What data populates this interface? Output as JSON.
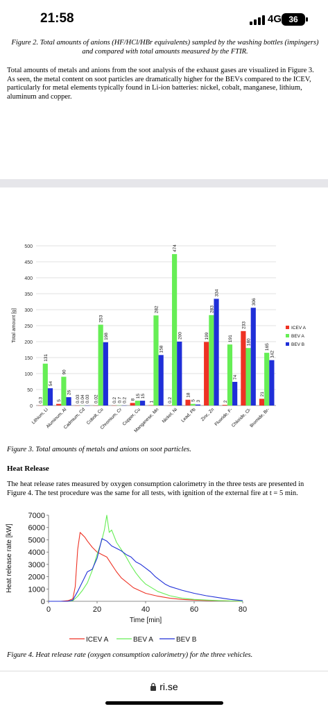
{
  "status_bar": {
    "time": "21:58",
    "network": "4G",
    "battery": "36"
  },
  "doc": {
    "fig2_caption": "Figure 2. Total amounts of anions (HF/HCl/HBr equivalents) sampled by the washing bottles (impingers) and compared with total amounts measured by the FTIR.",
    "intro_paragraph": "Total amounts of metals and anions from the soot analysis of the exhaust gases are visualized in Figure 3. As seen, the metal content on soot particles are dramatically higher for the BEVs compared to the ICEV, particularly for metal elements typically found in Li-ion batteries: nickel, cobalt, manganese, lithium, aluminum and copper.",
    "fig3_caption": "Figure 3. Total amounts of metals and anions on soot particles.",
    "heat_release_heading": "Heat Release",
    "heat_paragraph": "The heat release rates measured by oxygen consumption calorimetry in the three tests are presented in Figure 4. The test procedure was the same for all tests, with ignition of the external fire at t = 5 min.",
    "fig4_caption": "Figure 4. Heat release rate (oxygen consumption calorimetry) for the three vehicles."
  },
  "browser": {
    "url": "ri.se",
    "lock_icon": "lock-icon"
  },
  "chart_data": [
    {
      "type": "bar",
      "ylabel": "Total amount [g]",
      "ylim": [
        0,
        500
      ],
      "yticks": [
        0,
        50,
        100,
        150,
        200,
        250,
        300,
        350,
        400,
        450,
        500
      ],
      "categories": [
        "Lithium, Li",
        "Aluminum, Al",
        "Cadmium, Cd",
        "Cobolt, Co",
        "Chromium, Cr",
        "Copper, Cu",
        "Manganese, Mn",
        "Nickel, Ni",
        "Lead, Pb",
        "Zinc, Zn",
        "Fluoride, F-",
        "Chloride, Cl-",
        "Bromide, Br-"
      ],
      "series": [
        {
          "name": "ICEV A",
          "color": "#ee3224",
          "values": [
            0.3,
            5,
            0.03,
            0.02,
            0.2,
            8,
            1,
            0.2,
            18,
            199,
            2,
            233,
            21
          ],
          "labels": [
            "0.3",
            "5",
            "0.03",
            "0.02",
            "0.2",
            "8",
            "1",
            "0.2",
            "18",
            "199",
            "2",
            "233",
            "21"
          ]
        },
        {
          "name": "BEV A",
          "color": "#66ee55",
          "values": [
            131,
            90,
            0.04,
            253,
            0.7,
            15,
            282,
            474,
            5,
            283,
            191,
            180,
            165
          ],
          "labels": [
            "131",
            "90",
            "0.04",
            "253",
            "0.7",
            "15",
            "282",
            "474",
            "5",
            "283",
            "191",
            "180",
            "165"
          ]
        },
        {
          "name": "BEV B",
          "color": "#1f2fd8",
          "values": [
            54,
            26,
            0.03,
            198,
            0.2,
            15,
            158,
            200,
            3,
            334,
            74,
            306,
            142
          ],
          "labels": [
            "54",
            "26",
            "0.03",
            "198",
            "0.2",
            "15",
            "158",
            "200",
            "3",
            "334",
            "74",
            "306",
            "142"
          ]
        }
      ],
      "legend": "right",
      "grid": true
    },
    {
      "type": "line",
      "xlabel": "Time [min]",
      "ylabel": "Heat release rate [kW]",
      "xlim": [
        0,
        80
      ],
      "ylim": [
        0,
        7000
      ],
      "xticks": [
        0,
        20,
        40,
        60,
        80
      ],
      "yticks": [
        0,
        1000,
        2000,
        3000,
        4000,
        5000,
        6000,
        7000
      ],
      "legend": "bottom",
      "series": [
        {
          "name": "ICEV A",
          "color": "#ee3224",
          "x": [
            0,
            5,
            8,
            10,
            11,
            12,
            13,
            14,
            15,
            16,
            18,
            20,
            22,
            24,
            26,
            28,
            30,
            35,
            40,
            45,
            50,
            55,
            60,
            65,
            70,
            75,
            80
          ],
          "y": [
            0,
            0,
            50,
            200,
            1200,
            4200,
            5600,
            5400,
            5200,
            4900,
            4400,
            4000,
            3800,
            3600,
            3000,
            2400,
            1900,
            1100,
            650,
            420,
            250,
            150,
            100,
            70,
            50,
            30,
            0
          ]
        },
        {
          "name": "BEV A",
          "color": "#66ee55",
          "x": [
            0,
            8,
            10,
            12,
            14,
            16,
            18,
            20,
            22,
            23,
            24,
            25,
            26,
            28,
            30,
            32,
            34,
            36,
            38,
            40,
            45,
            50,
            55,
            60,
            65,
            70,
            75,
            80
          ],
          "y": [
            0,
            0,
            50,
            400,
            900,
            1500,
            2500,
            3800,
            5000,
            5800,
            7000,
            5600,
            5800,
            4800,
            4200,
            3600,
            2900,
            2300,
            1800,
            1400,
            800,
            450,
            250,
            150,
            100,
            60,
            30,
            0
          ]
        },
        {
          "name": "BEV B",
          "color": "#1f2fd8",
          "x": [
            0,
            8,
            10,
            12,
            14,
            16,
            18,
            20,
            22,
            24,
            26,
            28,
            30,
            32,
            34,
            36,
            38,
            40,
            42,
            44,
            46,
            48,
            50,
            55,
            60,
            65,
            70,
            75,
            80
          ],
          "y": [
            0,
            0,
            100,
            800,
            1600,
            2400,
            2600,
            3500,
            5100,
            4900,
            4500,
            4300,
            4100,
            3800,
            3600,
            3200,
            3000,
            2700,
            2400,
            2000,
            1700,
            1400,
            1200,
            900,
            650,
            450,
            300,
            150,
            50
          ]
        }
      ]
    }
  ]
}
